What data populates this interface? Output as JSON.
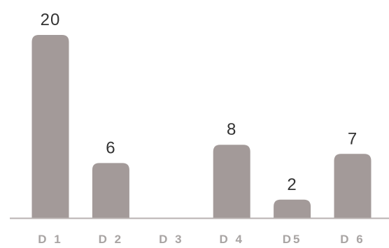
{
  "chart_data": {
    "type": "bar",
    "categories": [
      "D 1",
      "D 2",
      "D 3",
      "D 4",
      "D5",
      "D 6"
    ],
    "values": [
      20,
      6,
      0,
      8,
      2,
      7
    ],
    "value_labels": [
      "20",
      "6",
      "",
      "8",
      "2",
      "7"
    ],
    "ylim": [
      0,
      20
    ],
    "grid": false,
    "legend": "none"
  },
  "colors": {
    "bar": "#a39a99",
    "baseline": "#b8b2b1",
    "value_text": "#333333",
    "category_text": "#a8a4a3"
  }
}
